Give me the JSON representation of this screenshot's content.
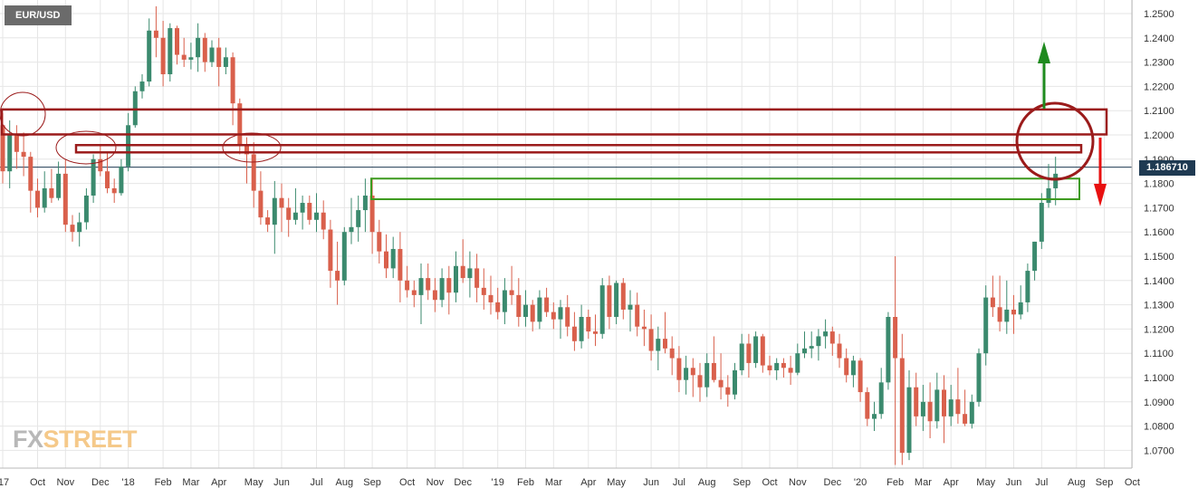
{
  "symbol": "EUR/USD",
  "brand": {
    "part1": "FX",
    "part2": "STREET"
  },
  "colors": {
    "up": "#3b8a6e",
    "down": "#d9604c",
    "zone_red": "#9b1b1b",
    "zone_green": "#3c9a1e",
    "arrow_up": "#1e8a1e",
    "arrow_down": "#e81010",
    "grid": "#e6e6e6",
    "price_line": "#1f3a52"
  },
  "chart_data": {
    "type": "candlestick",
    "title": "EUR/USD",
    "timeframe": "weekly",
    "current_price": 1.18671,
    "current_price_label": "1.186710",
    "ylim": [
      1.063,
      1.253
    ],
    "y_ticks": [
      "1.2500",
      "1.2400",
      "1.2300",
      "1.2200",
      "1.2100",
      "1.2000",
      "1.1900",
      "1.1800",
      "1.1700",
      "1.1600",
      "1.1500",
      "1.1400",
      "1.1300",
      "1.1200",
      "1.1100",
      "1.1000",
      "1.0900",
      "1.0800",
      "1.0700"
    ],
    "x_ticks": [
      "'17",
      "Oct",
      "Nov",
      "Dec",
      "'18",
      "Feb",
      "Mar",
      "Apr",
      "May",
      "Jun",
      "Jul",
      "Aug",
      "Sep",
      "Oct",
      "Nov",
      "Dec",
      "'19",
      "Feb",
      "Mar",
      "Apr",
      "May",
      "Jun",
      "Jul",
      "Aug",
      "Sep",
      "Oct",
      "Nov",
      "Dec",
      "'20",
      "Feb",
      "Mar",
      "Apr",
      "May",
      "Jun",
      "Jul",
      "Aug",
      "Sep",
      "Oct"
    ],
    "x_tick_weeks": [
      0,
      5,
      9,
      14,
      18,
      23,
      27,
      31,
      36,
      40,
      45,
      49,
      53,
      58,
      62,
      66,
      71,
      75,
      79,
      84,
      88,
      93,
      97,
      101,
      106,
      110,
      114,
      119,
      123,
      128,
      132,
      136,
      141,
      145,
      149,
      154,
      158,
      162
    ],
    "candles": [
      [
        1.204,
        1.209,
        1.18,
        1.185
      ],
      [
        1.185,
        1.206,
        1.178,
        1.2
      ],
      [
        1.2,
        1.204,
        1.186,
        1.193
      ],
      [
        1.193,
        1.201,
        1.183,
        1.191
      ],
      [
        1.191,
        1.193,
        1.168,
        1.177
      ],
      [
        1.177,
        1.182,
        1.166,
        1.17
      ],
      [
        1.17,
        1.185,
        1.168,
        1.178
      ],
      [
        1.178,
        1.186,
        1.172,
        1.174
      ],
      [
        1.174,
        1.189,
        1.173,
        1.184
      ],
      [
        1.184,
        1.19,
        1.16,
        1.163
      ],
      [
        1.163,
        1.167,
        1.156,
        1.16
      ],
      [
        1.16,
        1.168,
        1.154,
        1.164
      ],
      [
        1.164,
        1.178,
        1.161,
        1.175
      ],
      [
        1.175,
        1.192,
        1.172,
        1.19
      ],
      [
        1.19,
        1.196,
        1.183,
        1.185
      ],
      [
        1.185,
        1.193,
        1.176,
        1.178
      ],
      [
        1.178,
        1.182,
        1.172,
        1.176
      ],
      [
        1.176,
        1.19,
        1.175,
        1.187
      ],
      [
        1.187,
        1.209,
        1.185,
        1.204
      ],
      [
        1.204,
        1.22,
        1.203,
        1.218
      ],
      [
        1.218,
        1.225,
        1.215,
        1.222
      ],
      [
        1.222,
        1.248,
        1.22,
        1.243
      ],
      [
        1.243,
        1.253,
        1.232,
        1.24
      ],
      [
        1.24,
        1.247,
        1.22,
        1.225
      ],
      [
        1.225,
        1.246,
        1.222,
        1.244
      ],
      [
        1.244,
        1.245,
        1.229,
        1.233
      ],
      [
        1.233,
        1.24,
        1.228,
        1.231
      ],
      [
        1.231,
        1.238,
        1.227,
        1.232
      ],
      [
        1.232,
        1.246,
        1.226,
        1.24
      ],
      [
        1.24,
        1.242,
        1.226,
        1.23
      ],
      [
        1.23,
        1.239,
        1.228,
        1.236
      ],
      [
        1.236,
        1.24,
        1.22,
        1.228
      ],
      [
        1.228,
        1.236,
        1.225,
        1.232
      ],
      [
        1.232,
        1.234,
        1.204,
        1.213
      ],
      [
        1.213,
        1.215,
        1.192,
        1.196
      ],
      [
        1.196,
        1.199,
        1.18,
        1.192
      ],
      [
        1.192,
        1.197,
        1.17,
        1.177
      ],
      [
        1.177,
        1.185,
        1.163,
        1.166
      ],
      [
        1.166,
        1.169,
        1.16,
        1.163
      ],
      [
        1.163,
        1.181,
        1.151,
        1.174
      ],
      [
        1.174,
        1.18,
        1.16,
        1.17
      ],
      [
        1.17,
        1.174,
        1.158,
        1.165
      ],
      [
        1.165,
        1.178,
        1.163,
        1.168
      ],
      [
        1.168,
        1.175,
        1.161,
        1.172
      ],
      [
        1.172,
        1.175,
        1.163,
        1.165
      ],
      [
        1.165,
        1.176,
        1.16,
        1.168
      ],
      [
        1.168,
        1.173,
        1.157,
        1.161
      ],
      [
        1.161,
        1.165,
        1.137,
        1.144
      ],
      [
        1.144,
        1.156,
        1.13,
        1.14
      ],
      [
        1.14,
        1.162,
        1.138,
        1.16
      ],
      [
        1.16,
        1.174,
        1.155,
        1.162
      ],
      [
        1.162,
        1.175,
        1.156,
        1.169
      ],
      [
        1.169,
        1.182,
        1.16,
        1.175
      ],
      [
        1.175,
        1.182,
        1.151,
        1.16
      ],
      [
        1.16,
        1.165,
        1.147,
        1.152
      ],
      [
        1.152,
        1.159,
        1.141,
        1.145
      ],
      [
        1.145,
        1.158,
        1.141,
        1.153
      ],
      [
        1.153,
        1.16,
        1.131,
        1.14
      ],
      [
        1.14,
        1.146,
        1.133,
        1.136
      ],
      [
        1.136,
        1.14,
        1.129,
        1.134
      ],
      [
        1.134,
        1.147,
        1.122,
        1.141
      ],
      [
        1.141,
        1.147,
        1.132,
        1.136
      ],
      [
        1.136,
        1.141,
        1.127,
        1.132
      ],
      [
        1.132,
        1.145,
        1.129,
        1.141
      ],
      [
        1.141,
        1.146,
        1.126,
        1.135
      ],
      [
        1.135,
        1.152,
        1.131,
        1.146
      ],
      [
        1.146,
        1.157,
        1.139,
        1.141
      ],
      [
        1.141,
        1.152,
        1.133,
        1.145
      ],
      [
        1.145,
        1.151,
        1.131,
        1.137
      ],
      [
        1.137,
        1.145,
        1.128,
        1.134
      ],
      [
        1.134,
        1.142,
        1.126,
        1.131
      ],
      [
        1.131,
        1.137,
        1.124,
        1.127
      ],
      [
        1.127,
        1.141,
        1.122,
        1.136
      ],
      [
        1.136,
        1.146,
        1.13,
        1.134
      ],
      [
        1.134,
        1.141,
        1.121,
        1.125
      ],
      [
        1.125,
        1.136,
        1.121,
        1.13
      ],
      [
        1.13,
        1.132,
        1.119,
        1.123
      ],
      [
        1.123,
        1.136,
        1.12,
        1.133
      ],
      [
        1.133,
        1.137,
        1.125,
        1.127
      ],
      [
        1.127,
        1.131,
        1.12,
        1.124
      ],
      [
        1.124,
        1.132,
        1.116,
        1.129
      ],
      [
        1.129,
        1.134,
        1.117,
        1.121
      ],
      [
        1.121,
        1.127,
        1.111,
        1.115
      ],
      [
        1.115,
        1.13,
        1.112,
        1.125
      ],
      [
        1.125,
        1.128,
        1.116,
        1.119
      ],
      [
        1.119,
        1.126,
        1.113,
        1.118
      ],
      [
        1.118,
        1.141,
        1.116,
        1.138
      ],
      [
        1.138,
        1.142,
        1.12,
        1.125
      ],
      [
        1.125,
        1.14,
        1.122,
        1.139
      ],
      [
        1.139,
        1.141,
        1.124,
        1.128
      ],
      [
        1.128,
        1.136,
        1.119,
        1.13
      ],
      [
        1.13,
        1.135,
        1.117,
        1.121
      ],
      [
        1.121,
        1.128,
        1.113,
        1.12
      ],
      [
        1.12,
        1.126,
        1.107,
        1.111
      ],
      [
        1.111,
        1.121,
        1.103,
        1.116
      ],
      [
        1.116,
        1.127,
        1.11,
        1.112
      ],
      [
        1.112,
        1.117,
        1.101,
        1.108
      ],
      [
        1.108,
        1.113,
        1.094,
        1.099
      ],
      [
        1.099,
        1.109,
        1.093,
        1.104
      ],
      [
        1.104,
        1.108,
        1.092,
        1.101
      ],
      [
        1.101,
        1.106,
        1.09,
        1.096
      ],
      [
        1.096,
        1.11,
        1.092,
        1.106
      ],
      [
        1.106,
        1.117,
        1.098,
        1.099
      ],
      [
        1.099,
        1.11,
        1.091,
        1.096
      ],
      [
        1.096,
        1.101,
        1.088,
        1.093
      ],
      [
        1.093,
        1.106,
        1.091,
        1.103
      ],
      [
        1.103,
        1.118,
        1.101,
        1.114
      ],
      [
        1.114,
        1.118,
        1.1,
        1.106
      ],
      [
        1.106,
        1.119,
        1.104,
        1.117
      ],
      [
        1.117,
        1.118,
        1.102,
        1.105
      ],
      [
        1.105,
        1.109,
        1.101,
        1.103
      ],
      [
        1.103,
        1.108,
        1.099,
        1.106
      ],
      [
        1.106,
        1.108,
        1.1,
        1.104
      ],
      [
        1.104,
        1.109,
        1.097,
        1.102
      ],
      [
        1.102,
        1.114,
        1.101,
        1.11
      ],
      [
        1.11,
        1.119,
        1.108,
        1.112
      ],
      [
        1.112,
        1.119,
        1.108,
        1.113
      ],
      [
        1.113,
        1.12,
        1.107,
        1.117
      ],
      [
        1.117,
        1.124,
        1.112,
        1.119
      ],
      [
        1.119,
        1.121,
        1.109,
        1.114
      ],
      [
        1.114,
        1.118,
        1.104,
        1.108
      ],
      [
        1.108,
        1.112,
        1.098,
        1.101
      ],
      [
        1.101,
        1.109,
        1.096,
        1.107
      ],
      [
        1.107,
        1.108,
        1.09,
        1.094
      ],
      [
        1.094,
        1.096,
        1.08,
        1.083
      ],
      [
        1.083,
        1.09,
        1.078,
        1.085
      ],
      [
        1.085,
        1.104,
        1.083,
        1.098
      ],
      [
        1.098,
        1.127,
        1.095,
        1.125
      ],
      [
        1.125,
        1.15,
        1.064,
        1.108
      ],
      [
        1.108,
        1.118,
        1.064,
        1.069
      ],
      [
        1.069,
        1.103,
        1.066,
        1.096
      ],
      [
        1.096,
        1.102,
        1.08,
        1.084
      ],
      [
        1.084,
        1.097,
        1.078,
        1.09
      ],
      [
        1.09,
        1.098,
        1.075,
        1.082
      ],
      [
        1.082,
        1.102,
        1.079,
        1.095
      ],
      [
        1.095,
        1.101,
        1.073,
        1.084
      ],
      [
        1.084,
        1.097,
        1.08,
        1.091
      ],
      [
        1.091,
        1.104,
        1.081,
        1.085
      ],
      [
        1.085,
        1.095,
        1.08,
        1.081
      ],
      [
        1.081,
        1.093,
        1.079,
        1.09
      ],
      [
        1.09,
        1.112,
        1.088,
        1.11
      ],
      [
        1.11,
        1.138,
        1.105,
        1.133
      ],
      [
        1.133,
        1.142,
        1.125,
        1.129
      ],
      [
        1.129,
        1.142,
        1.119,
        1.123
      ],
      [
        1.123,
        1.14,
        1.118,
        1.128
      ],
      [
        1.128,
        1.134,
        1.118,
        1.126
      ],
      [
        1.126,
        1.138,
        1.124,
        1.131
      ],
      [
        1.131,
        1.147,
        1.127,
        1.144
      ],
      [
        1.144,
        1.156,
        1.14,
        1.156
      ],
      [
        1.156,
        1.176,
        1.153,
        1.172
      ],
      [
        1.172,
        1.188,
        1.17,
        1.178
      ],
      [
        1.178,
        1.191,
        1.171,
        1.184
      ]
    ],
    "annotations": {
      "resistance_zones": [
        [
          1.2002,
          1.2105
        ],
        [
          1.1928,
          1.1958
        ]
      ],
      "support_zone": [
        1.1735,
        1.182
      ],
      "arrows": [
        "up",
        "down"
      ]
    }
  }
}
